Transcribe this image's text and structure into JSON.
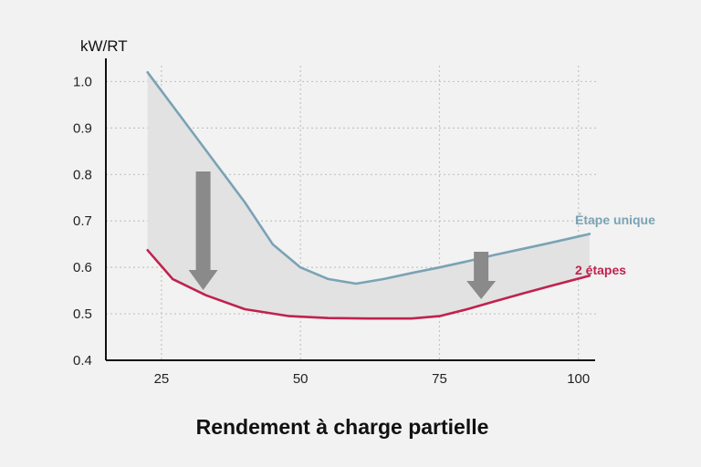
{
  "chart_data": {
    "type": "line",
    "title": "Rendement à charge partielle",
    "xlabel": "",
    "ylabel": "kW/RT",
    "xlim": [
      15,
      103
    ],
    "ylim": [
      0.4,
      1.05
    ],
    "xticks": [
      "25",
      "50",
      "75",
      "100"
    ],
    "yticks": [
      "1.0",
      "0.9",
      "0.8",
      "0.7",
      "0.6",
      "0.5",
      "0.4"
    ],
    "grid": true,
    "legend": "right",
    "series": [
      {
        "name": "Étape unique",
        "color": "#7aa3b4",
        "x": [
          22.5,
          30,
          35,
          40,
          45,
          50,
          55,
          60,
          65,
          70,
          75,
          80,
          85,
          90,
          95,
          102
        ],
        "y": [
          1.02,
          0.9,
          0.82,
          0.74,
          0.65,
          0.6,
          0.575,
          0.565,
          0.575,
          0.588,
          0.6,
          0.613,
          0.627,
          0.64,
          0.653,
          0.672
        ]
      },
      {
        "name": "2 étapes",
        "color": "#c0224f",
        "x": [
          22.5,
          27,
          33,
          40,
          48,
          55,
          62,
          70,
          75,
          80,
          85,
          90,
          95,
          102
        ],
        "y": [
          0.637,
          0.575,
          0.54,
          0.51,
          0.495,
          0.491,
          0.49,
          0.49,
          0.495,
          0.51,
          0.527,
          0.544,
          0.56,
          0.582
        ]
      }
    ],
    "colors": {
      "fill": "#e2e2e2",
      "arrow": "#8a8a8a",
      "grid": "#c4c4c4",
      "axis": "#111111"
    }
  }
}
